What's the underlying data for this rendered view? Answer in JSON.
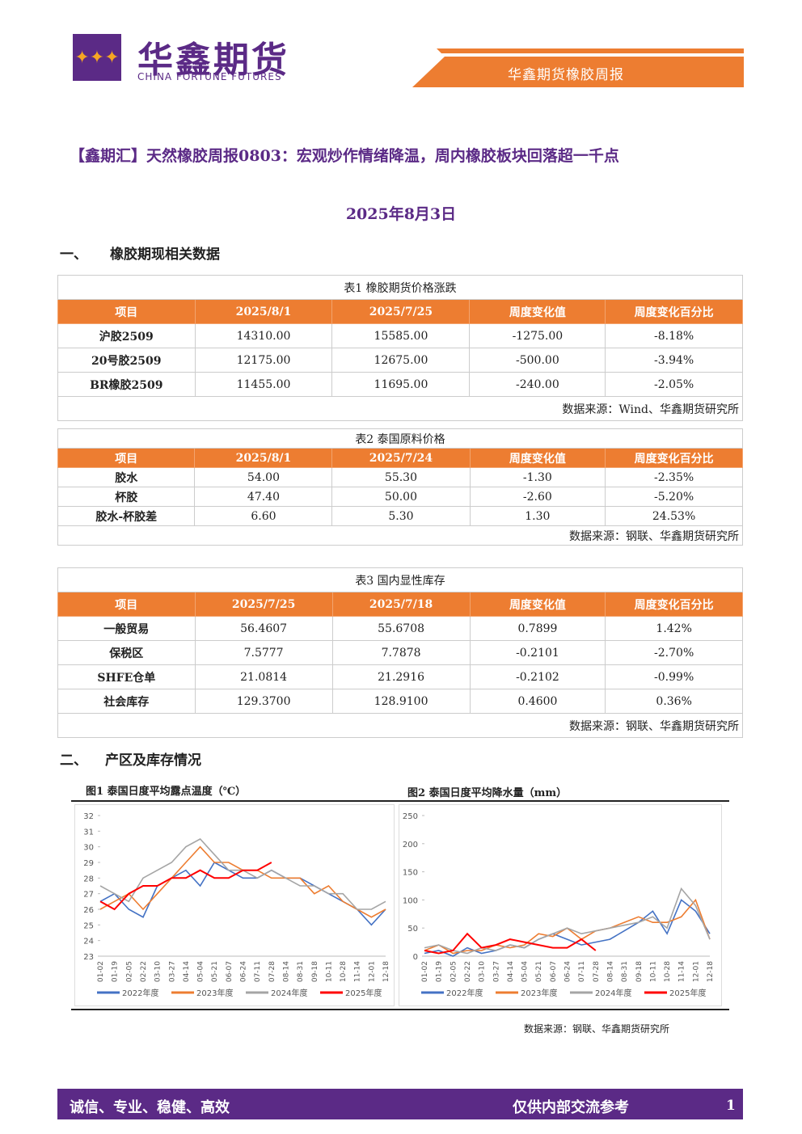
{
  "header": {
    "brand": "华鑫期货",
    "brand_en": "CHINA FORTUNE FUTURES",
    "report_name": "华鑫期货橡胶周报"
  },
  "title": "【鑫期汇】天然橡胶周报0803：宏观炒作情绪降温，周内橡胶板块回落超一千点",
  "date": "2025年8月3日",
  "sections": [
    {
      "number": "一、",
      "title": "橡胶期现相关数据"
    },
    {
      "number": "二、",
      "title": "产区及库存情况"
    }
  ],
  "tables": [
    {
      "caption": "表1 橡胶期货价格涨跌",
      "headers": [
        "项目",
        "2025/8/1",
        "2025/7/25",
        "周度变化值",
        "周度变化百分比"
      ],
      "rows": [
        [
          "沪胶2509",
          "14310.00",
          "15585.00",
          "-1275.00",
          "-8.18%"
        ],
        [
          "20号胶2509",
          "12175.00",
          "12675.00",
          "-500.00",
          "-3.94%"
        ],
        [
          "BR橡胶2509",
          "11455.00",
          "11695.00",
          "-240.00",
          "-2.05%"
        ]
      ],
      "source": "数据来源：Wind、华鑫期货研究所"
    },
    {
      "caption": "表2 泰国原料价格",
      "headers": [
        "项目",
        "2025/8/1",
        "2025/7/24",
        "周度变化值",
        "周度变化百分比"
      ],
      "rows": [
        [
          "胶水",
          "54.00",
          "55.30",
          "-1.30",
          "-2.35%"
        ],
        [
          "杯胶",
          "47.40",
          "50.00",
          "-2.60",
          "-5.20%"
        ],
        [
          "胶水-杯胶差",
          "6.60",
          "5.30",
          "1.30",
          "24.53%"
        ]
      ],
      "source": "数据来源：钢联、华鑫期货研究所"
    },
    {
      "caption": "表3 国内显性库存",
      "headers": [
        "项目",
        "2025/7/25",
        "2025/7/18",
        "周度变化值",
        "周度变化百分比"
      ],
      "rows": [
        [
          "一般贸易",
          "56.4607",
          "55.6708",
          "0.7899",
          "1.42%"
        ],
        [
          "保税区",
          "7.5777",
          "7.7878",
          "-0.2101",
          "-2.70%"
        ],
        [
          "SHFE仓单",
          "21.0814",
          "21.2916",
          "-0.2102",
          "-0.99%"
        ],
        [
          "社会库存",
          "129.3700",
          "128.9100",
          "0.4600",
          "0.36%"
        ]
      ],
      "source": "数据来源：钢联、华鑫期货研究所"
    }
  ],
  "chart_data": [
    {
      "type": "line",
      "title": "图1 泰国日度平均露点温度（℃）",
      "categories": [
        "01-02",
        "01-19",
        "02-05",
        "02-22",
        "03-10",
        "03-27",
        "04-14",
        "05-04",
        "05-21",
        "06-07",
        "06-24",
        "07-11",
        "07-28",
        "08-14",
        "08-31",
        "09-18",
        "10-11",
        "10-28",
        "11-14",
        "12-01",
        "12-18"
      ],
      "ylim": [
        23,
        32
      ],
      "yticks": [
        23,
        24,
        25,
        26,
        27,
        28,
        29,
        30,
        31,
        32
      ],
      "series": [
        {
          "name": "2022年度",
          "color": "#4472c4",
          "values": [
            26.5,
            27,
            26,
            25.5,
            27.5,
            28,
            28.5,
            27.5,
            29,
            28.5,
            28,
            28,
            28.5,
            28,
            28,
            27.5,
            27,
            26.5,
            26,
            25,
            26
          ]
        },
        {
          "name": "2023年度",
          "color": "#ed7d31",
          "values": [
            26,
            26.5,
            27,
            26,
            27,
            28,
            29,
            30,
            29,
            29,
            28.5,
            28.5,
            28,
            28,
            28,
            27,
            27.5,
            26.5,
            26,
            25.5,
            26
          ]
        },
        {
          "name": "2024年度",
          "color": "#a5a5a5",
          "values": [
            27.5,
            27,
            26.5,
            28,
            28.5,
            29,
            30,
            30.5,
            29.5,
            28.5,
            28.5,
            28,
            28.5,
            28,
            27.5,
            27.5,
            27,
            27,
            26,
            26,
            26.5
          ]
        },
        {
          "name": "2025年度",
          "color": "#ff0000",
          "values": [
            26.5,
            26,
            27,
            27.5,
            27.5,
            28,
            28,
            28.5,
            28,
            28,
            28.5,
            28.5,
            29,
            null,
            null,
            null,
            null,
            null,
            null,
            null,
            null
          ]
        }
      ]
    },
    {
      "type": "line",
      "title": "图2 泰国日度平均降水量（mm）",
      "categories": [
        "01-02",
        "01-19",
        "02-05",
        "02-22",
        "03-10",
        "03-27",
        "04-14",
        "05-04",
        "05-21",
        "06-07",
        "06-24",
        "07-11",
        "07-28",
        "08-14",
        "08-31",
        "09-18",
        "10-11",
        "10-28",
        "11-14",
        "12-01",
        "12-18"
      ],
      "ylim": [
        0,
        250
      ],
      "yticks": [
        0,
        50,
        100,
        150,
        200,
        250
      ],
      "series": [
        {
          "name": "2022年度",
          "color": "#4472c4",
          "values": [
            5,
            10,
            0,
            15,
            5,
            10,
            20,
            15,
            30,
            40,
            30,
            20,
            25,
            30,
            45,
            60,
            80,
            40,
            100,
            80,
            40
          ]
        },
        {
          "name": "2023年度",
          "color": "#ed7d31",
          "values": [
            10,
            20,
            5,
            10,
            10,
            20,
            15,
            20,
            40,
            35,
            50,
            30,
            45,
            50,
            60,
            70,
            60,
            60,
            70,
            100,
            30
          ]
        },
        {
          "name": "2024年度",
          "color": "#a5a5a5",
          "values": [
            15,
            20,
            10,
            5,
            15,
            10,
            20,
            15,
            30,
            40,
            50,
            40,
            45,
            50,
            55,
            60,
            70,
            50,
            120,
            90,
            30
          ]
        },
        {
          "name": "2025年度",
          "color": "#ff0000",
          "values": [
            10,
            5,
            10,
            40,
            15,
            20,
            30,
            25,
            20,
            15,
            15,
            30,
            10,
            null,
            null,
            null,
            null,
            null,
            null,
            null,
            null
          ]
        }
      ]
    }
  ],
  "chart_source": "数据来源：钢联、华鑫期货研究所",
  "footer": {
    "motto": "诚信、专业、稳健、高效",
    "notice": "仅供内部交流参考",
    "page": "1"
  }
}
